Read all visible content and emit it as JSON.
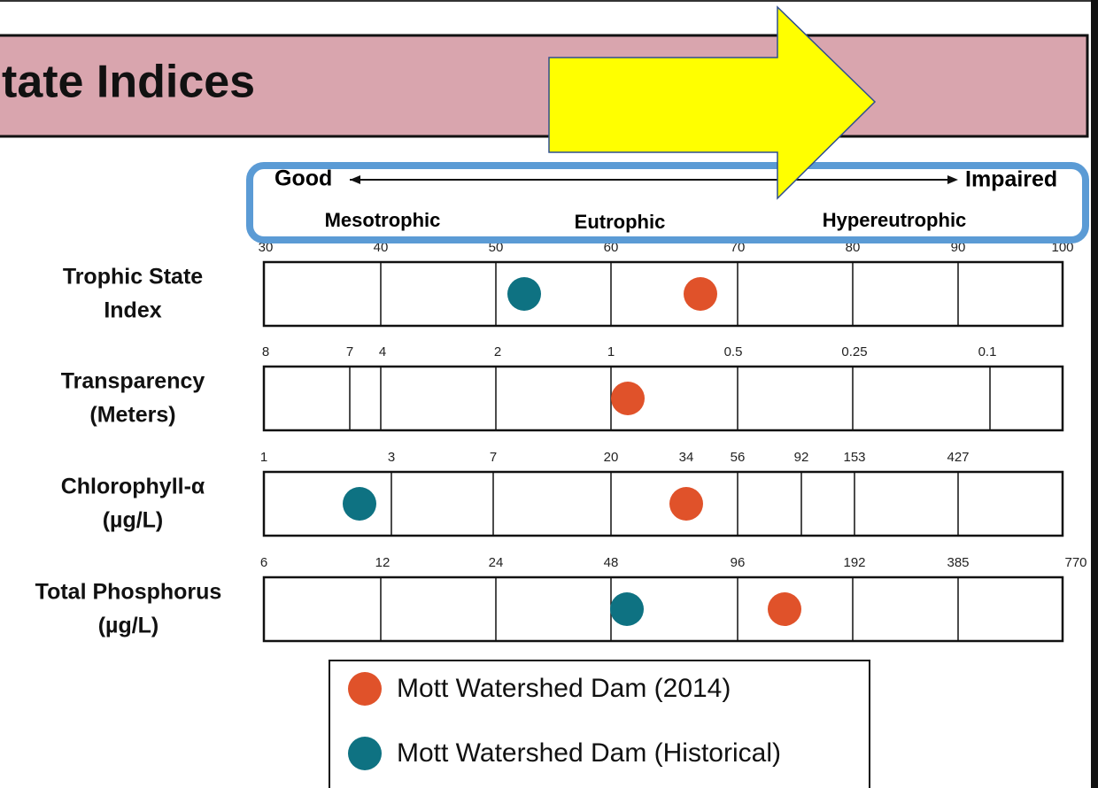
{
  "header": {
    "title": "tate Indices"
  },
  "scale": {
    "good": "Good",
    "impaired": "Impaired",
    "zones": [
      "Mesotrophic",
      "Eutrophic",
      "Hypereutrophic"
    ]
  },
  "rows": [
    {
      "label": [
        "Trophic State",
        "Index"
      ],
      "ticks": [
        "30",
        "40",
        "50",
        "60",
        "70",
        "80",
        "90",
        "100"
      ]
    },
    {
      "label": [
        "Transparency",
        "(Meters)"
      ],
      "ticks": [
        "8",
        "7",
        "4",
        "2",
        "1",
        "0.5",
        "0.25",
        "0.1"
      ]
    },
    {
      "label": [
        "Chlorophyll-α",
        "(µg/L)"
      ],
      "ticks": [
        "1",
        "3",
        "7",
        "20",
        "34",
        "56",
        "92",
        "153",
        "427"
      ]
    },
    {
      "label": [
        "Total Phosphorus",
        "(µg/L)"
      ],
      "ticks": [
        "6",
        "12",
        "24",
        "48",
        "96",
        "192",
        "385",
        "770"
      ]
    }
  ],
  "legend": [
    "Mott Watershed Dam (2014)",
    "Mott Watershed Dam (Historical)"
  ]
}
